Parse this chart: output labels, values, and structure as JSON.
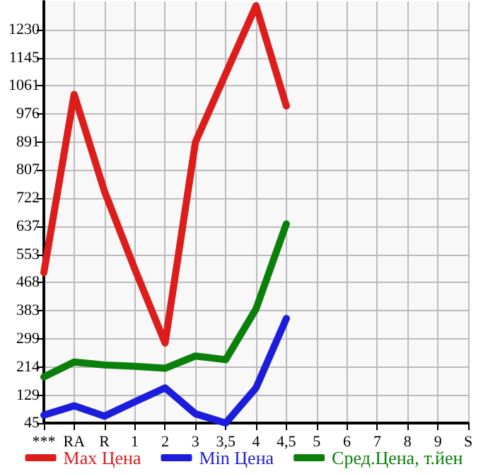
{
  "chart_data": {
    "type": "line",
    "categories": [
      "***",
      "RA",
      "R",
      "1",
      "2",
      "3",
      "3,5",
      "4",
      "4,5",
      "5",
      "6",
      "7",
      "8",
      "9",
      "S"
    ],
    "series": [
      {
        "name": "Max Цена",
        "color": "#dd1c1c",
        "values": [
          498,
          1035,
          743,
          509,
          286,
          891,
          1097,
          1302,
          1000,
          null,
          null,
          null,
          null,
          null,
          null
        ]
      },
      {
        "name": "Min Цена",
        "color": "#1c1cdd",
        "values": [
          69,
          97,
          66,
          109,
          151,
          73,
          45,
          151,
          360,
          null,
          null,
          null,
          null,
          null,
          null
        ]
      },
      {
        "name": "Сред.Цена, т.йен",
        "color": "#0a7f0a",
        "values": [
          184,
          229,
          220,
          216,
          210,
          247,
          236,
          389,
          645,
          null,
          null,
          null,
          null,
          null,
          null
        ]
      }
    ],
    "ylim": [
      45,
      1315
    ],
    "yticks": [
      45,
      129,
      214,
      299,
      383,
      468,
      553,
      637,
      722,
      807,
      891,
      976,
      1061,
      1145,
      1230
    ],
    "grid": true,
    "legend": "bottom",
    "marker": "none",
    "line_style": "solid"
  }
}
